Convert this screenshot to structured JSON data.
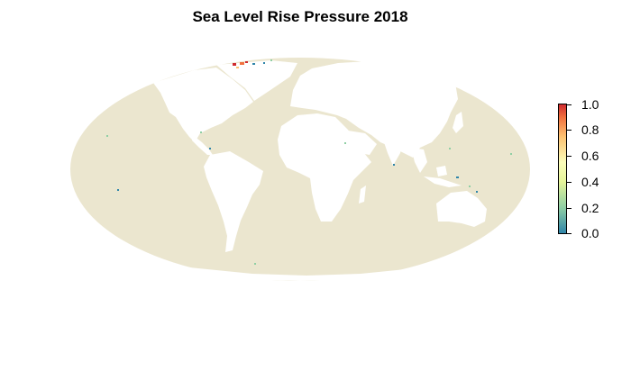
{
  "title": "Sea Level Rise Pressure 2018",
  "colors": {
    "ocean_zero": "#ebe6cf",
    "land": "#ffffff",
    "scale": [
      "#2f85a9",
      "#8fcfa4",
      "#e6f59a",
      "#fbfdba",
      "#fdc272",
      "#f1703e",
      "#cf2b2f"
    ]
  },
  "legend": {
    "min": 0.0,
    "max": 1.0,
    "ticks": [
      "0.0",
      "0.2",
      "0.4",
      "0.6",
      "0.8",
      "1.0"
    ]
  },
  "projection": "mollweide"
}
